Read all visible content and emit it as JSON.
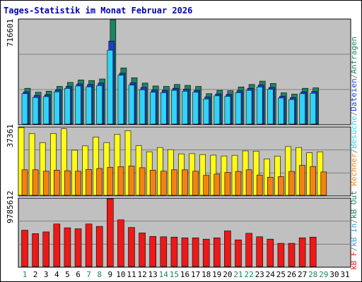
{
  "chart_data": {
    "type": "bar",
    "title": "Tages-Statistik im Monat Februar 2026",
    "categories": [
      "1",
      "2",
      "3",
      "4",
      "5",
      "6",
      "7",
      "8",
      "9",
      "10",
      "11",
      "12",
      "13",
      "14",
      "15",
      "16",
      "17",
      "18",
      "19",
      "20",
      "21",
      "22",
      "23",
      "24",
      "25",
      "26",
      "27",
      "28",
      "29",
      "30",
      "31"
    ],
    "weekend_days": [
      1,
      7,
      8,
      14,
      15,
      21,
      22,
      28,
      29
    ],
    "panels": [
      {
        "key": "top",
        "axis_label": "716601",
        "ylim": [
          0,
          716601
        ],
        "series": [
          {
            "name": "Anfragen",
            "color": "#1d8462",
            "values": [
              246000,
              219000,
              226000,
              259000,
              286000,
              303000,
              299000,
              310000,
              716601,
              386000,
              318000,
              282000,
              262000,
              259000,
              272000,
              266000,
              259000,
              209000,
              232000,
              229000,
              255000,
              272000,
              295000,
              279000,
              215000,
              206000,
              246000,
              249000,
              null,
              null,
              null
            ]
          },
          {
            "name": "Dateien",
            "color": "#1b3fd0",
            "values": [
              222000,
              196000,
              202000,
              236000,
              259000,
              276000,
              272000,
              282000,
              570000,
              349000,
              284000,
              252000,
              234000,
              232000,
              246000,
              240000,
              232000,
              186000,
              207000,
              204000,
              229000,
              246000,
              268000,
              252000,
              191000,
              182000,
              222000,
              224000,
              null,
              null,
              null
            ]
          },
          {
            "name": "Seiten",
            "color": "#2fd4f6",
            "values": [
              209000,
              183000,
              189000,
              222000,
              245000,
              262000,
              256000,
              265000,
              508000,
              336000,
              268000,
              236000,
              219000,
              216000,
              232000,
              226000,
              219000,
              173000,
              194000,
              191000,
              216000,
              232000,
              255000,
              239000,
              179000,
              169000,
              209000,
              212000,
              null,
              null,
              null
            ]
          }
        ]
      },
      {
        "key": "mid",
        "axis_label": "37361",
        "ylim": [
          0,
          37361
        ],
        "series": [
          {
            "name": "Rechner",
            "color": "#fffb17",
            "values": [
              37361,
              34100,
              29100,
              34100,
              36700,
              24900,
              27300,
              32200,
              29100,
              33700,
              35600,
              27400,
              24000,
              26400,
              25200,
              22900,
              23000,
              22500,
              22200,
              21700,
              22100,
              24500,
              24400,
              20100,
              21600,
              26900,
              26400,
              23500,
              24000,
              null,
              null
            ]
          },
          {
            "name": "Besuche",
            "color": "#f38212",
            "values": [
              14100,
              14100,
              13300,
              13900,
              13600,
              13300,
              14300,
              14800,
              15500,
              15800,
              16200,
              15200,
              13900,
              13300,
              14100,
              14100,
              13300,
              11000,
              11700,
              12600,
              13200,
              14100,
              11200,
              10000,
              10300,
              13200,
              16500,
              15900,
              12900,
              null,
              null
            ]
          }
        ]
      },
      {
        "key": "bot",
        "axis_label": "9785612",
        "ylim": [
          0,
          9785612
        ],
        "series": [
          {
            "name": "kB F",
            "color": "#ec1918",
            "values": [
              5250000,
              4750000,
              5000000,
              6150000,
              5600000,
              5450000,
              6150000,
              5800000,
              9785612,
              6750000,
              5650000,
              4850000,
              4350000,
              4300000,
              4250000,
              4150000,
              4150000,
              3950000,
              4150000,
              5150000,
              3850000,
              4800000,
              4300000,
              3950000,
              3350000,
              3350000,
              4150000,
              4250000,
              null,
              null,
              null
            ]
          }
        ]
      }
    ],
    "legend": [
      {
        "label": "kB F",
        "color": "#ec1918"
      },
      {
        "label": "/",
        "color": "#808080"
      },
      {
        "label": "kB In",
        "color": "#3fa0d6"
      },
      {
        "label": "/",
        "color": "#808080"
      },
      {
        "label": "kB Out",
        "color": "#1d8462"
      },
      {
        "label": "Rechner",
        "color": "#f38212"
      },
      {
        "label": "/",
        "color": "#808080"
      },
      {
        "label": "Besuche",
        "color": "#2fd4f6"
      },
      {
        "label": "/",
        "color": "#808080"
      },
      {
        "label": "Dateien",
        "color": "#1b3fd0"
      },
      {
        "label": "/",
        "color": "#808080"
      },
      {
        "label": "Anfragen",
        "color": "#1d8462"
      }
    ],
    "colors": {
      "background": "#ffffff",
      "plot_background": "#c0c0c0",
      "title": "#0000b0",
      "axis_text": "#000000",
      "weekday_label": "#000000",
      "weekend_label": "#1d8462",
      "gridline": "#808080"
    }
  }
}
